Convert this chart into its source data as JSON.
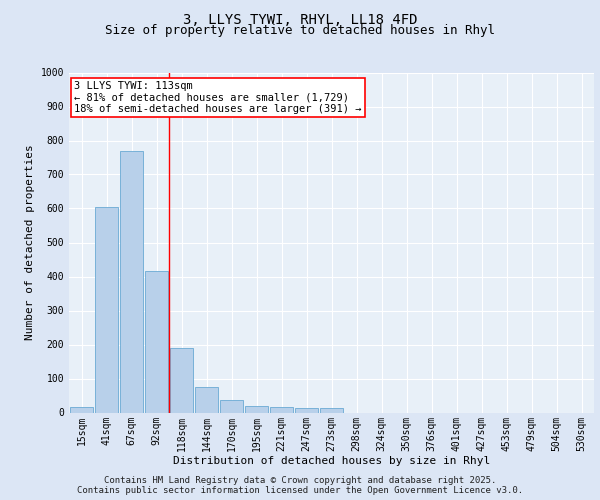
{
  "title1": "3, LLYS TYWI, RHYL, LL18 4FD",
  "title2": "Size of property relative to detached houses in Rhyl",
  "xlabel": "Distribution of detached houses by size in Rhyl",
  "ylabel": "Number of detached properties",
  "bar_values": [
    15,
    605,
    770,
    415,
    190,
    75,
    38,
    18,
    15,
    12,
    12,
    0,
    0,
    0,
    0,
    0,
    0,
    0,
    0,
    0,
    0
  ],
  "bar_labels": [
    "15sqm",
    "41sqm",
    "67sqm",
    "92sqm",
    "118sqm",
    "144sqm",
    "170sqm",
    "195sqm",
    "221sqm",
    "247sqm",
    "273sqm",
    "298sqm",
    "324sqm",
    "350sqm",
    "376sqm",
    "401sqm",
    "427sqm",
    "453sqm",
    "479sqm",
    "504sqm",
    "530sqm"
  ],
  "ylim": [
    0,
    1000
  ],
  "yticks": [
    0,
    100,
    200,
    300,
    400,
    500,
    600,
    700,
    800,
    900,
    1000
  ],
  "bar_color": "#b8d0ea",
  "bar_edge_color": "#6aaad4",
  "red_line_x": 3.5,
  "annotation_line1": "3 LLYS TYWI: 113sqm",
  "annotation_line2": "← 81% of detached houses are smaller (1,729)",
  "annotation_line3": "18% of semi-detached houses are larger (391) →",
  "footnote1": "Contains HM Land Registry data © Crown copyright and database right 2025.",
  "footnote2": "Contains public sector information licensed under the Open Government Licence v3.0.",
  "background_color": "#dce6f5",
  "plot_bg_color": "#e8f0f8",
  "grid_color": "#ffffff",
  "title_fontsize": 10,
  "subtitle_fontsize": 9,
  "axis_label_fontsize": 8,
  "tick_fontsize": 7,
  "annotation_fontsize": 7.5,
  "footnote_fontsize": 6.5
}
